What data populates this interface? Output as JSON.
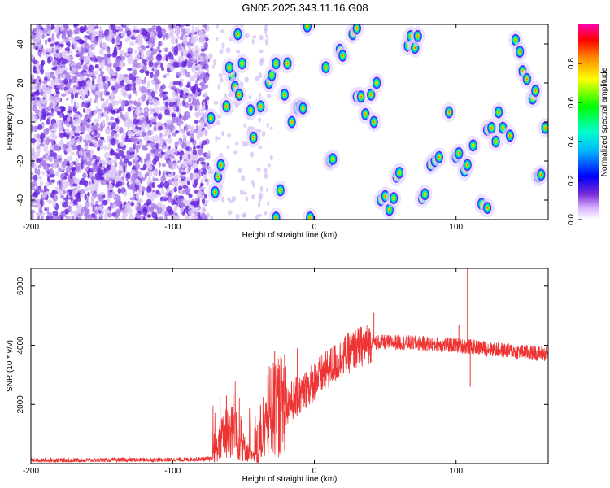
{
  "title": "GN05.2025.343.11.16.G08",
  "chart_data": [
    {
      "type": "heatmap",
      "name": "spectrogram",
      "xlabel": "Height of straight line (km)",
      "ylabel": "Frequency (Hz)",
      "xlim": [
        -200,
        165
      ],
      "ylim": [
        -50,
        50
      ],
      "xticks": [
        -200,
        -100,
        0,
        100
      ],
      "xtick_labels": [
        "-200",
        "-100",
        "0",
        "100"
      ],
      "yticks": [
        -40,
        -20,
        0,
        20,
        40
      ],
      "ytick_labels": [
        "-40",
        "-20",
        "0",
        "20",
        "40"
      ],
      "colorbar": {
        "label": "Normalized spectral amplitude",
        "range": [
          0,
          1
        ],
        "ticks": [
          0.0,
          0.2,
          0.4,
          0.6,
          0.8
        ],
        "tick_labels": [
          "0.0",
          "0.2",
          "0.4",
          "0.6",
          "0.8"
        ],
        "colormap": [
          "#ffffff",
          "#cc99ff",
          "#6600cc",
          "#0000ff",
          "#00ffff",
          "#00ff00",
          "#ffff00",
          "#ff8800",
          "#ff0000",
          "#ff00aa"
        ]
      },
      "noise_region_x": [
        -200,
        -75
      ],
      "noise_color": "#6622dd",
      "peaks": [
        {
          "x": -73,
          "y": 2
        },
        {
          "x": -68,
          "y": -28
        },
        {
          "x": -66,
          "y": -22
        },
        {
          "x": -70,
          "y": -36
        },
        {
          "x": -62,
          "y": 8
        },
        {
          "x": -58,
          "y": 24
        },
        {
          "x": -56,
          "y": 18
        },
        {
          "x": -53,
          "y": 14
        },
        {
          "x": -51,
          "y": 30
        },
        {
          "x": -54,
          "y": 45
        },
        {
          "x": -43,
          "y": -8
        },
        {
          "x": -38,
          "y": 8
        },
        {
          "x": -32,
          "y": 20
        },
        {
          "x": -30,
          "y": 24
        },
        {
          "x": -27,
          "y": 30
        },
        {
          "x": -24,
          "y": -35
        },
        {
          "x": -21,
          "y": 14
        },
        {
          "x": -19,
          "y": 30
        },
        {
          "x": -16,
          "y": 0
        },
        {
          "x": -12,
          "y": 7
        },
        {
          "x": -10,
          "y": 8
        },
        {
          "x": -8,
          "y": 7
        },
        {
          "x": -27,
          "y": -49
        },
        {
          "x": -3,
          "y": -49
        },
        {
          "x": -5,
          "y": 49
        },
        {
          "x": 8,
          "y": 28
        },
        {
          "x": 11,
          "y": -20
        },
        {
          "x": 13,
          "y": -19
        },
        {
          "x": 18,
          "y": 37
        },
        {
          "x": 20,
          "y": 34
        },
        {
          "x": 27,
          "y": 45
        },
        {
          "x": 30,
          "y": 48
        },
        {
          "x": 30,
          "y": 13
        },
        {
          "x": 33,
          "y": 13
        },
        {
          "x": 36,
          "y": 4
        },
        {
          "x": 40,
          "y": 14
        },
        {
          "x": 44,
          "y": 20
        },
        {
          "x": 47,
          "y": -40
        },
        {
          "x": 50,
          "y": -38
        },
        {
          "x": 53,
          "y": -45
        },
        {
          "x": 56,
          "y": -39
        },
        {
          "x": 58,
          "y": -28
        },
        {
          "x": 60,
          "y": -26
        },
        {
          "x": 66,
          "y": 39
        },
        {
          "x": 68,
          "y": 44
        },
        {
          "x": 71,
          "y": 38
        },
        {
          "x": 73,
          "y": 44
        },
        {
          "x": 76,
          "y": -39
        },
        {
          "x": 78,
          "y": -37
        },
        {
          "x": 82,
          "y": -22
        },
        {
          "x": 85,
          "y": -20
        },
        {
          "x": 88,
          "y": -18
        },
        {
          "x": 95,
          "y": 5
        },
        {
          "x": 100,
          "y": -18
        },
        {
          "x": 102,
          "y": -16
        },
        {
          "x": 106,
          "y": -25
        },
        {
          "x": 108,
          "y": -22
        },
        {
          "x": 112,
          "y": -12
        },
        {
          "x": 118,
          "y": -42
        },
        {
          "x": 122,
          "y": -44
        },
        {
          "x": 122,
          "y": -4
        },
        {
          "x": 125,
          "y": -3
        },
        {
          "x": 128,
          "y": -10
        },
        {
          "x": 130,
          "y": 5
        },
        {
          "x": 133,
          "y": -3
        },
        {
          "x": 138,
          "y": -7
        },
        {
          "x": 142,
          "y": 42
        },
        {
          "x": 145,
          "y": 36
        },
        {
          "x": 147,
          "y": 26
        },
        {
          "x": 150,
          "y": 22
        },
        {
          "x": 154,
          "y": 12
        },
        {
          "x": 156,
          "y": 16
        },
        {
          "x": 158,
          "y": -28
        },
        {
          "x": 160,
          "y": -27
        },
        {
          "x": 163,
          "y": -3
        },
        {
          "x": 42,
          "y": 0
        },
        {
          "x": -45,
          "y": 6
        },
        {
          "x": -60,
          "y": 28
        }
      ]
    },
    {
      "type": "line",
      "name": "snr",
      "xlabel": "Height of straight line (km)",
      "ylabel": "SNR (10 * v/v)",
      "xlim": [
        -200,
        165
      ],
      "ylim": [
        0,
        6600
      ],
      "xticks": [
        -200,
        -100,
        0,
        100
      ],
      "xtick_labels": [
        "-200",
        "-100",
        "0",
        "100"
      ],
      "yticks": [
        2000,
        4000,
        6000
      ],
      "ytick_labels": [
        "2000",
        "4000",
        "6000"
      ],
      "color": "#ee3333",
      "baseline_profile": [
        {
          "x": -200,
          "y": 110
        },
        {
          "x": -100,
          "y": 130
        },
        {
          "x": -72,
          "y": 160
        },
        {
          "x": -65,
          "y": 900
        },
        {
          "x": -58,
          "y": 1200
        },
        {
          "x": -52,
          "y": 700
        },
        {
          "x": -45,
          "y": 250
        },
        {
          "x": -40,
          "y": 150
        },
        {
          "x": -36,
          "y": 1000
        },
        {
          "x": -30,
          "y": 1800
        },
        {
          "x": -20,
          "y": 2000
        },
        {
          "x": -10,
          "y": 2300
        },
        {
          "x": 0,
          "y": 2800
        },
        {
          "x": 10,
          "y": 3200
        },
        {
          "x": 20,
          "y": 3600
        },
        {
          "x": 30,
          "y": 3900
        },
        {
          "x": 40,
          "y": 4100
        },
        {
          "x": 60,
          "y": 4100
        },
        {
          "x": 80,
          "y": 4050
        },
        {
          "x": 100,
          "y": 4000
        },
        {
          "x": 120,
          "y": 3900
        },
        {
          "x": 140,
          "y": 3800
        },
        {
          "x": 165,
          "y": 3700
        }
      ],
      "spikes": [
        {
          "x": -62,
          "y": 2300
        },
        {
          "x": -58,
          "y": 1900
        },
        {
          "x": -40,
          "y": 1300
        },
        {
          "x": -28,
          "y": 3800
        },
        {
          "x": -21,
          "y": 3700
        },
        {
          "x": -12,
          "y": 3900
        },
        {
          "x": 42,
          "y": 5100
        },
        {
          "x": 108,
          "y": 6600
        },
        {
          "x": 102,
          "y": 4700
        },
        {
          "x": 110,
          "y": 2600
        }
      ]
    }
  ]
}
